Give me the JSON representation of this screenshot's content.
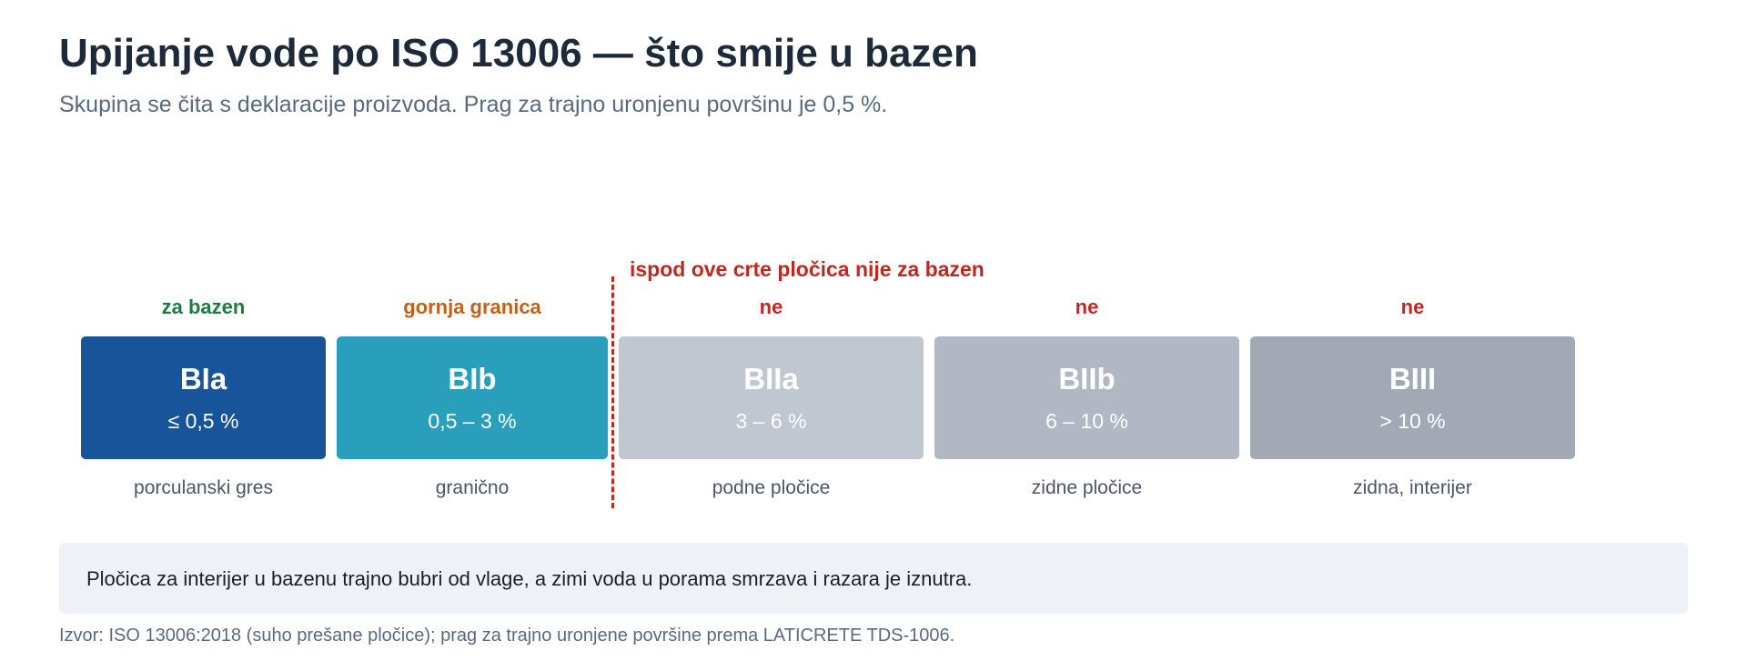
{
  "header": {
    "title": "Upijanje vode po ISO 13006 — što smije u bazen",
    "subtitle": "Skupina se čita s deklaracije proizvoda. Prag za trajno uronjenu površinu je 0,5 %."
  },
  "threshold": {
    "label": "ispod ove crte pločica nije za bazen",
    "color": "#c0281f"
  },
  "groups": [
    {
      "code": "BIa",
      "range": "≤ 0,5 %",
      "verdict": "za bazen",
      "verdict_color": "#1e7a3e",
      "usage": "porculanski gres",
      "tile_color": "#17549a"
    },
    {
      "code": "BIb",
      "range": "0,5 – 3 %",
      "verdict": "gornja granica",
      "verdict_color": "#c2601a",
      "usage": "granično",
      "tile_color": "#299fbc"
    },
    {
      "code": "BIIa",
      "range": "3 – 6 %",
      "verdict": "ne",
      "verdict_color": "#c0281f",
      "usage": "podne pločice",
      "tile_color": "#c1c7d1"
    },
    {
      "code": "BIIb",
      "range": "6 – 10 %",
      "verdict": "ne",
      "verdict_color": "#c0281f",
      "usage": "zidne pločice",
      "tile_color": "#b1b8c3"
    },
    {
      "code": "BIII",
      "range": "> 10 %",
      "verdict": "ne",
      "verdict_color": "#c0281f",
      "usage": "zidna, interijer",
      "tile_color": "#a3a9b4"
    }
  ],
  "note": "Pločica za interijer u bazenu trajno bubri od vlage, a zimi voda u porama smrzava i razara je iznutra.",
  "source": "Izvor: ISO 13006:2018 (suho prešane pločice); prag za trajno uronjene površine prema LATICRETE TDS-1006."
}
